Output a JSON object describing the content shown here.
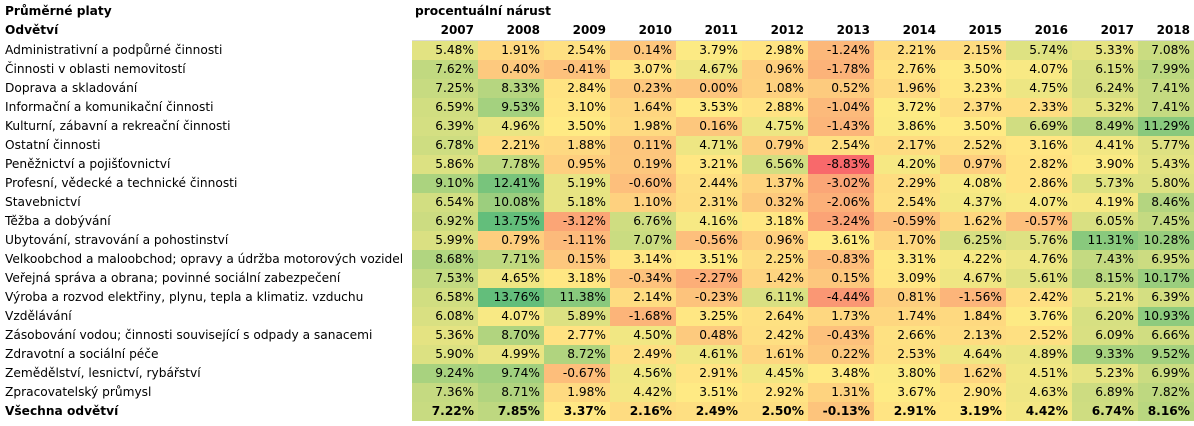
{
  "header": {
    "title": "Průměrné platy",
    "subtitle": "procentuální nárust",
    "sector_header": "Odvětví"
  },
  "color_scale": {
    "low": "#f8696b",
    "mid": "#ffeb84",
    "high": "#63be7b"
  },
  "chart_data": {
    "type": "table",
    "title": "Průměrné platy",
    "subtitle": "procentuální nárust",
    "row_header": "Odvětví",
    "columns": [
      "2007",
      "2008",
      "2009",
      "2010",
      "2011",
      "2012",
      "2013",
      "2014",
      "2015",
      "2016",
      "2017",
      "2018"
    ],
    "rows": [
      {
        "label": "Administrativní a podpůrné činnosti",
        "values": [
          "5.48%",
          "1.91%",
          "2.54%",
          "0.14%",
          "3.79%",
          "2.98%",
          "-1.24%",
          "2.21%",
          "2.15%",
          "5.74%",
          "5.33%",
          "7.08%"
        ]
      },
      {
        "label": "Činnosti v oblasti nemovitostí",
        "values": [
          "7.62%",
          "0.40%",
          "-0.41%",
          "3.07%",
          "4.67%",
          "0.96%",
          "-1.78%",
          "2.76%",
          "3.50%",
          "4.07%",
          "6.15%",
          "7.99%"
        ]
      },
      {
        "label": "Doprava a skladování",
        "values": [
          "7.25%",
          "8.33%",
          "2.84%",
          "0.23%",
          "0.00%",
          "1.08%",
          "0.52%",
          "1.96%",
          "3.23%",
          "4.75%",
          "6.24%",
          "7.41%"
        ]
      },
      {
        "label": "Informační a komunikační činnosti",
        "values": [
          "6.59%",
          "9.53%",
          "3.10%",
          "1.64%",
          "3.53%",
          "2.88%",
          "-1.04%",
          "3.72%",
          "2.37%",
          "2.33%",
          "5.32%",
          "7.41%"
        ]
      },
      {
        "label": "Kulturní, zábavní a rekreační činnosti",
        "values": [
          "6.39%",
          "4.96%",
          "3.50%",
          "1.98%",
          "0.16%",
          "4.75%",
          "-1.43%",
          "3.86%",
          "3.50%",
          "6.69%",
          "8.49%",
          "11.29%"
        ]
      },
      {
        "label": "Ostatní činnosti",
        "values": [
          "6.78%",
          "2.21%",
          "1.88%",
          "0.11%",
          "4.71%",
          "0.79%",
          "2.54%",
          "2.17%",
          "2.52%",
          "3.16%",
          "4.41%",
          "5.77%"
        ]
      },
      {
        "label": "Peněžnictví a pojišťovnictví",
        "values": [
          "5.86%",
          "7.78%",
          "0.95%",
          "0.19%",
          "3.21%",
          "6.56%",
          "-8.83%",
          "4.20%",
          "0.97%",
          "2.82%",
          "3.90%",
          "5.43%"
        ]
      },
      {
        "label": "Profesní, vědecké a technické činnosti",
        "values": [
          "9.10%",
          "12.41%",
          "5.19%",
          "-0.60%",
          "2.44%",
          "1.37%",
          "-3.02%",
          "2.29%",
          "4.08%",
          "2.86%",
          "5.73%",
          "5.80%"
        ]
      },
      {
        "label": "Stavebnictví",
        "values": [
          "6.54%",
          "10.08%",
          "5.18%",
          "1.10%",
          "2.31%",
          "0.32%",
          "-2.06%",
          "2.54%",
          "4.37%",
          "4.07%",
          "4.19%",
          "8.46%"
        ]
      },
      {
        "label": "Těžba a dobývání",
        "values": [
          "6.92%",
          "13.75%",
          "-3.12%",
          "6.76%",
          "4.16%",
          "3.18%",
          "-3.24%",
          "-0.59%",
          "1.62%",
          "-0.57%",
          "6.05%",
          "7.45%"
        ]
      },
      {
        "label": "Ubytování, stravování a pohostinství",
        "values": [
          "5.99%",
          "0.79%",
          "-1.11%",
          "7.07%",
          "-0.56%",
          "0.96%",
          "3.61%",
          "1.70%",
          "6.25%",
          "5.76%",
          "11.31%",
          "10.28%"
        ]
      },
      {
        "label": "Velkoobchod a maloobchod; opravy a údržba motorových vozidel",
        "values": [
          "8.68%",
          "7.71%",
          "0.15%",
          "3.14%",
          "3.51%",
          "2.25%",
          "-0.83%",
          "3.31%",
          "4.22%",
          "4.76%",
          "7.43%",
          "6.95%"
        ]
      },
      {
        "label": "Veřejná správa a obrana; povinné sociální zabezpečení",
        "values": [
          "7.53%",
          "4.65%",
          "3.18%",
          "-0.34%",
          "-2.27%",
          "1.42%",
          "0.15%",
          "3.09%",
          "4.67%",
          "5.61%",
          "8.15%",
          "10.17%"
        ]
      },
      {
        "label": "Výroba a rozvod elektřiny, plynu, tepla a klimatiz. vzduchu",
        "values": [
          "6.58%",
          "13.76%",
          "11.38%",
          "2.14%",
          "-0.23%",
          "6.11%",
          "-4.44%",
          "0.81%",
          "-1.56%",
          "2.42%",
          "5.21%",
          "6.39%"
        ]
      },
      {
        "label": "Vzdělávání",
        "values": [
          "6.08%",
          "4.07%",
          "5.89%",
          "-1.68%",
          "3.25%",
          "2.64%",
          "1.73%",
          "1.74%",
          "1.84%",
          "3.76%",
          "6.20%",
          "10.93%"
        ]
      },
      {
        "label": "Zásobování vodou; činnosti související s odpady a sanacemi",
        "values": [
          "5.36%",
          "8.70%",
          "2.77%",
          "4.50%",
          "0.48%",
          "2.42%",
          "-0.43%",
          "2.66%",
          "2.13%",
          "2.52%",
          "6.09%",
          "6.66%"
        ]
      },
      {
        "label": "Zdravotní a sociální péče",
        "values": [
          "5.90%",
          "4.99%",
          "8.72%",
          "2.49%",
          "4.61%",
          "1.61%",
          "0.22%",
          "2.53%",
          "4.64%",
          "4.89%",
          "9.33%",
          "9.52%"
        ]
      },
      {
        "label": "Zemědělství, lesnictví, rybářství",
        "values": [
          "9.24%",
          "9.74%",
          "-0.67%",
          "4.56%",
          "2.91%",
          "4.45%",
          "3.48%",
          "3.80%",
          "1.62%",
          "4.51%",
          "5.23%",
          "6.99%"
        ]
      },
      {
        "label": "Zpracovatelský průmysl",
        "values": [
          "7.36%",
          "8.71%",
          "1.98%",
          "4.42%",
          "3.51%",
          "2.92%",
          "1.31%",
          "3.67%",
          "2.90%",
          "4.63%",
          "6.89%",
          "7.82%"
        ]
      }
    ],
    "total": {
      "label": "Všechna odvětví",
      "values": [
        "7.22%",
        "7.85%",
        "3.37%",
        "2.16%",
        "2.49%",
        "2.50%",
        "-0.13%",
        "2.91%",
        "3.19%",
        "4.42%",
        "6.74%",
        "8.16%"
      ]
    }
  }
}
